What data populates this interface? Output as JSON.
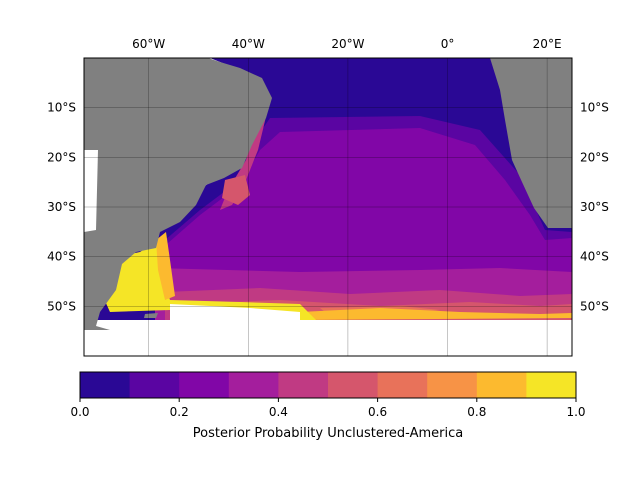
{
  "map": {
    "lon_labels": [
      {
        "lon": -60,
        "text": "60°W"
      },
      {
        "lon": -40,
        "text": "40°W"
      },
      {
        "lon": -20,
        "text": "20°W"
      },
      {
        "lon": 0,
        "text": "0°"
      },
      {
        "lon": 20,
        "text": "20°E"
      }
    ],
    "lat_labels": [
      {
        "lat": -10,
        "text": "10°S"
      },
      {
        "lat": -20,
        "text": "20°S"
      },
      {
        "lat": -30,
        "text": "30°S"
      },
      {
        "lat": -40,
        "text": "40°S"
      },
      {
        "lat": -50,
        "text": "50°S"
      }
    ],
    "lon_range": [
      -73,
      25
    ],
    "lat_range": [
      -60,
      0
    ],
    "land_color": "#808080",
    "grid": true
  },
  "colorbar": {
    "label": "Posterior Probability Unclustered-America",
    "ticks": [
      "0.0",
      "0.2",
      "0.4",
      "0.6",
      "0.8",
      "1.0"
    ],
    "colors": [
      "#2a0895",
      "#5a05a2",
      "#8106a7",
      "#a41e9d",
      "#c03a83",
      "#d5566c",
      "#e8725a",
      "#f79346",
      "#fcba2f",
      "#f5e526"
    ]
  }
}
